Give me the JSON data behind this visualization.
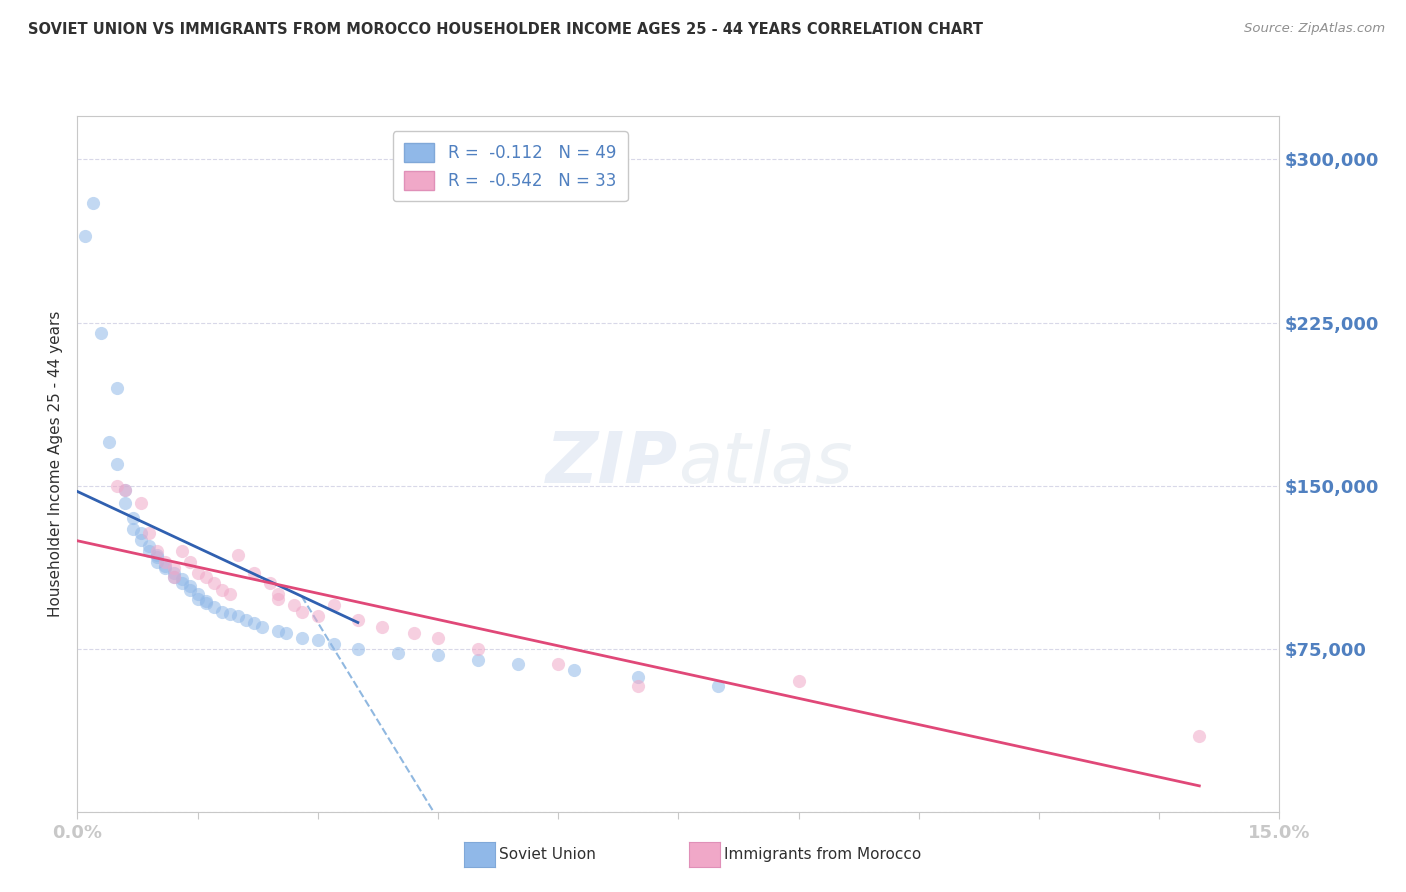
{
  "title": "SOVIET UNION VS IMMIGRANTS FROM MOROCCO HOUSEHOLDER INCOME AGES 25 - 44 YEARS CORRELATION CHART",
  "source": "Source: ZipAtlas.com",
  "ylabel": "Householder Income Ages 25 - 44 years",
  "watermark_zip": "ZIP",
  "watermark_atlas": "atlas",
  "legend_label1": "R =  -0.112   N = 49",
  "legend_label2": "R =  -0.542   N = 33",
  "legend_label_soviet": "Soviet Union",
  "legend_label_morocco": "Immigrants from Morocco",
  "soviet_union_x": [
    0.001,
    0.002,
    0.003,
    0.004,
    0.005,
    0.005,
    0.006,
    0.006,
    0.007,
    0.007,
    0.008,
    0.008,
    0.009,
    0.009,
    0.01,
    0.01,
    0.01,
    0.011,
    0.011,
    0.012,
    0.012,
    0.013,
    0.013,
    0.014,
    0.014,
    0.015,
    0.015,
    0.016,
    0.016,
    0.017,
    0.018,
    0.019,
    0.02,
    0.021,
    0.022,
    0.023,
    0.025,
    0.026,
    0.028,
    0.03,
    0.032,
    0.035,
    0.04,
    0.045,
    0.05,
    0.055,
    0.062,
    0.07,
    0.08
  ],
  "soviet_union_y": [
    265000,
    280000,
    220000,
    170000,
    195000,
    160000,
    148000,
    142000,
    135000,
    130000,
    128000,
    125000,
    122000,
    120000,
    118000,
    117000,
    115000,
    113000,
    112000,
    110000,
    108000,
    107000,
    105000,
    104000,
    102000,
    100000,
    98000,
    97000,
    96000,
    94000,
    92000,
    91000,
    90000,
    88000,
    87000,
    85000,
    83000,
    82000,
    80000,
    79000,
    77000,
    75000,
    73000,
    72000,
    70000,
    68000,
    65000,
    62000,
    58000
  ],
  "morocco_x": [
    0.005,
    0.006,
    0.008,
    0.009,
    0.01,
    0.011,
    0.012,
    0.012,
    0.013,
    0.014,
    0.015,
    0.016,
    0.017,
    0.018,
    0.019,
    0.02,
    0.022,
    0.024,
    0.025,
    0.025,
    0.027,
    0.028,
    0.03,
    0.032,
    0.035,
    0.038,
    0.042,
    0.045,
    0.05,
    0.06,
    0.07,
    0.09,
    0.14
  ],
  "morocco_y": [
    150000,
    148000,
    142000,
    128000,
    120000,
    115000,
    112000,
    108000,
    120000,
    115000,
    110000,
    108000,
    105000,
    102000,
    100000,
    118000,
    110000,
    105000,
    100000,
    98000,
    95000,
    92000,
    90000,
    95000,
    88000,
    85000,
    82000,
    80000,
    75000,
    68000,
    58000,
    60000,
    35000
  ],
  "xlim": [
    0.0,
    0.15
  ],
  "ylim": [
    0,
    320000
  ],
  "yticks": [
    0,
    75000,
    150000,
    225000,
    300000
  ],
  "ytick_labels": [
    "",
    "$75,000",
    "$150,000",
    "$225,000",
    "$300,000"
  ],
  "soviet_color": "#90b8e8",
  "morocco_color": "#f0a8c8",
  "soviet_line_color": "#3060b0",
  "morocco_line_color": "#e04878",
  "dashed_line_color": "#90b8e0",
  "background_color": "#ffffff",
  "title_color": "#303030",
  "source_color": "#909090",
  "axis_color": "#c8c8c8",
  "tick_color": "#5080c0",
  "grid_color": "#d8d8e8",
  "dot_size": 90,
  "dot_alpha": 0.55,
  "soviet_line_x_end": 0.035,
  "dashed_line_x_start": 0.028,
  "dashed_line_x_end": 0.13
}
